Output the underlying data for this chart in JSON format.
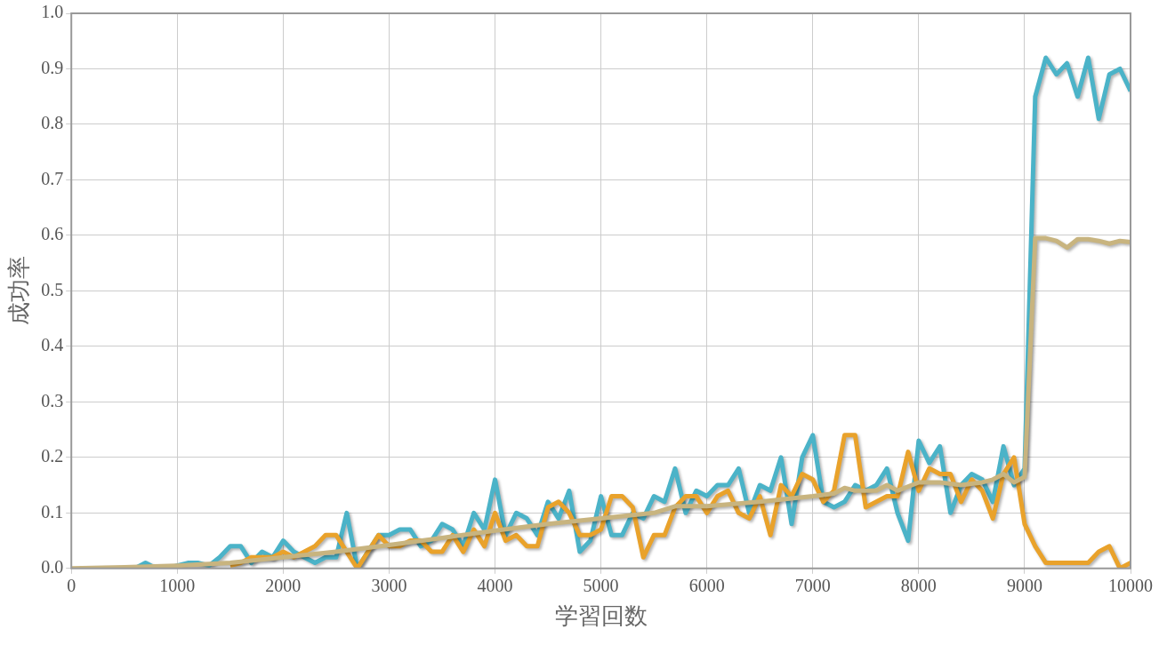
{
  "chart_data": {
    "type": "line",
    "xlabel": "学習回数",
    "ylabel": "成功率",
    "xlim": [
      0,
      10000
    ],
    "xticks": [
      0,
      1000,
      2000,
      3000,
      4000,
      5000,
      6000,
      7000,
      8000,
      9000,
      10000
    ],
    "ylim": [
      0,
      1
    ],
    "yticks": [
      {
        "value": 0,
        "label": "0.0"
      },
      {
        "value": 0.1,
        "label": "0.1"
      },
      {
        "value": 0.2,
        "label": "0.2"
      },
      {
        "value": 0.3,
        "label": "0.3"
      },
      {
        "value": 0.4,
        "label": "0.4"
      },
      {
        "value": 0.5,
        "label": "0.5"
      },
      {
        "value": 0.6,
        "label": "0.6"
      },
      {
        "value": 0.7,
        "label": "0.7"
      },
      {
        "value": 0.8,
        "label": "0.8"
      },
      {
        "value": 0.9,
        "label": "0.9"
      },
      {
        "value": 1,
        "label": "1.0"
      }
    ],
    "grid": true,
    "legend": false,
    "marker": "none",
    "line_style": "solid",
    "series": [
      {
        "color": "#4bb3c8",
        "x": [
          500,
          600,
          700,
          800,
          900,
          1000,
          1100,
          1200,
          1300,
          1400,
          1500,
          1600,
          1700,
          1800,
          1900,
          2000,
          2100,
          2200,
          2300,
          2400,
          2500,
          2600,
          2700,
          2800,
          2900,
          3000,
          3100,
          3200,
          3300,
          3400,
          3500,
          3600,
          3700,
          3800,
          3900,
          4000,
          4100,
          4200,
          4300,
          4400,
          4500,
          4600,
          4700,
          4800,
          4900,
          5000,
          5100,
          5200,
          5300,
          5400,
          5500,
          5600,
          5700,
          5800,
          5900,
          6000,
          6100,
          6200,
          6300,
          6400,
          6500,
          6600,
          6700,
          6800,
          6900,
          7000,
          7100,
          7200,
          7300,
          7400,
          7500,
          7600,
          7700,
          7800,
          7900,
          8000,
          8100,
          8200,
          8300,
          8400,
          8500,
          8600,
          8700,
          8800,
          8900,
          9000,
          9100,
          9200,
          9300,
          9400,
          9500,
          9600,
          9700,
          9800,
          9900,
          10000
        ],
        "values": [
          0,
          0,
          0.01,
          0,
          0,
          0.005,
          0.01,
          0.01,
          0.005,
          0.02,
          0.04,
          0.04,
          0.01,
          0.03,
          0.02,
          0.05,
          0.03,
          0.02,
          0.01,
          0.02,
          0.02,
          0.1,
          0,
          0.03,
          0.06,
          0.06,
          0.07,
          0.07,
          0.04,
          0.05,
          0.08,
          0.07,
          0.04,
          0.1,
          0.07,
          0.16,
          0.06,
          0.1,
          0.09,
          0.06,
          0.12,
          0.09,
          0.14,
          0.03,
          0.05,
          0.13,
          0.06,
          0.06,
          0.1,
          0.09,
          0.13,
          0.12,
          0.18,
          0.1,
          0.14,
          0.13,
          0.15,
          0.15,
          0.18,
          0.1,
          0.15,
          0.14,
          0.2,
          0.08,
          0.2,
          0.24,
          0.12,
          0.11,
          0.12,
          0.15,
          0.14,
          0.15,
          0.18,
          0.1,
          0.05,
          0.23,
          0.19,
          0.22,
          0.1,
          0.15,
          0.17,
          0.16,
          0.12,
          0.22,
          0.15,
          0.18,
          0.85,
          0.92,
          0.89,
          0.91,
          0.85,
          0.92,
          0.81,
          0.89,
          0.9,
          0.86
        ]
      },
      {
        "color": "#e9a22b",
        "x": [
          1500,
          1600,
          1700,
          1800,
          1900,
          2000,
          2100,
          2200,
          2300,
          2400,
          2500,
          2600,
          2700,
          2800,
          2900,
          3000,
          3100,
          3200,
          3300,
          3400,
          3500,
          3600,
          3700,
          3800,
          3900,
          4000,
          4100,
          4200,
          4300,
          4400,
          4500,
          4600,
          4700,
          4800,
          4900,
          5000,
          5100,
          5200,
          5300,
          5400,
          5500,
          5600,
          5700,
          5800,
          5900,
          6000,
          6100,
          6200,
          6300,
          6400,
          6500,
          6600,
          6700,
          6800,
          6900,
          7000,
          7100,
          7200,
          7300,
          7400,
          7500,
          7600,
          7700,
          7800,
          7900,
          8000,
          8100,
          8200,
          8300,
          8400,
          8500,
          8600,
          8700,
          8800,
          8900,
          9000,
          9100,
          9200,
          9300,
          9400,
          9500,
          9600,
          9700,
          9800,
          9900,
          10000
        ],
        "values": [
          0.005,
          0.01,
          0.02,
          0.02,
          0.02,
          0.03,
          0.02,
          0.03,
          0.04,
          0.06,
          0.06,
          0.03,
          0,
          0.03,
          0.06,
          0.04,
          0.04,
          0.05,
          0.05,
          0.03,
          0.03,
          0.06,
          0.03,
          0.07,
          0.04,
          0.1,
          0.05,
          0.06,
          0.04,
          0.04,
          0.11,
          0.12,
          0.1,
          0.06,
          0.06,
          0.07,
          0.13,
          0.13,
          0.11,
          0.02,
          0.06,
          0.06,
          0.11,
          0.13,
          0.13,
          0.1,
          0.13,
          0.14,
          0.1,
          0.09,
          0.13,
          0.06,
          0.15,
          0.13,
          0.17,
          0.16,
          0.12,
          0.14,
          0.24,
          0.24,
          0.11,
          0.12,
          0.13,
          0.13,
          0.21,
          0.14,
          0.18,
          0.17,
          0.17,
          0.12,
          0.16,
          0.14,
          0.09,
          0.17,
          0.2,
          0.08,
          0.04,
          0.01,
          0.01,
          0.01,
          0.01,
          0.01,
          0.03,
          0.04,
          0,
          0.01
        ]
      },
      {
        "color": "#c8b47f",
        "x": [
          0,
          500,
          1000,
          1500,
          2000,
          2500,
          3000,
          3500,
          4000,
          4500,
          5000,
          5500,
          5700,
          6000,
          6500,
          7000,
          7200,
          7300,
          7400,
          7600,
          7700,
          7800,
          8000,
          8200,
          8400,
          8600,
          8700,
          8800,
          8900,
          9000,
          9100,
          9200,
          9300,
          9400,
          9500,
          9600,
          9700,
          9800,
          9900,
          10000
        ],
        "values": [
          0,
          0.002,
          0.005,
          0.01,
          0.02,
          0.03,
          0.042,
          0.055,
          0.068,
          0.08,
          0.09,
          0.1,
          0.112,
          0.112,
          0.12,
          0.13,
          0.135,
          0.145,
          0.14,
          0.14,
          0.15,
          0.14,
          0.155,
          0.155,
          0.15,
          0.155,
          0.16,
          0.17,
          0.155,
          0.165,
          0.595,
          0.595,
          0.59,
          0.578,
          0.593,
          0.593,
          0.59,
          0.585,
          0.59,
          0.588
        ]
      }
    ]
  }
}
